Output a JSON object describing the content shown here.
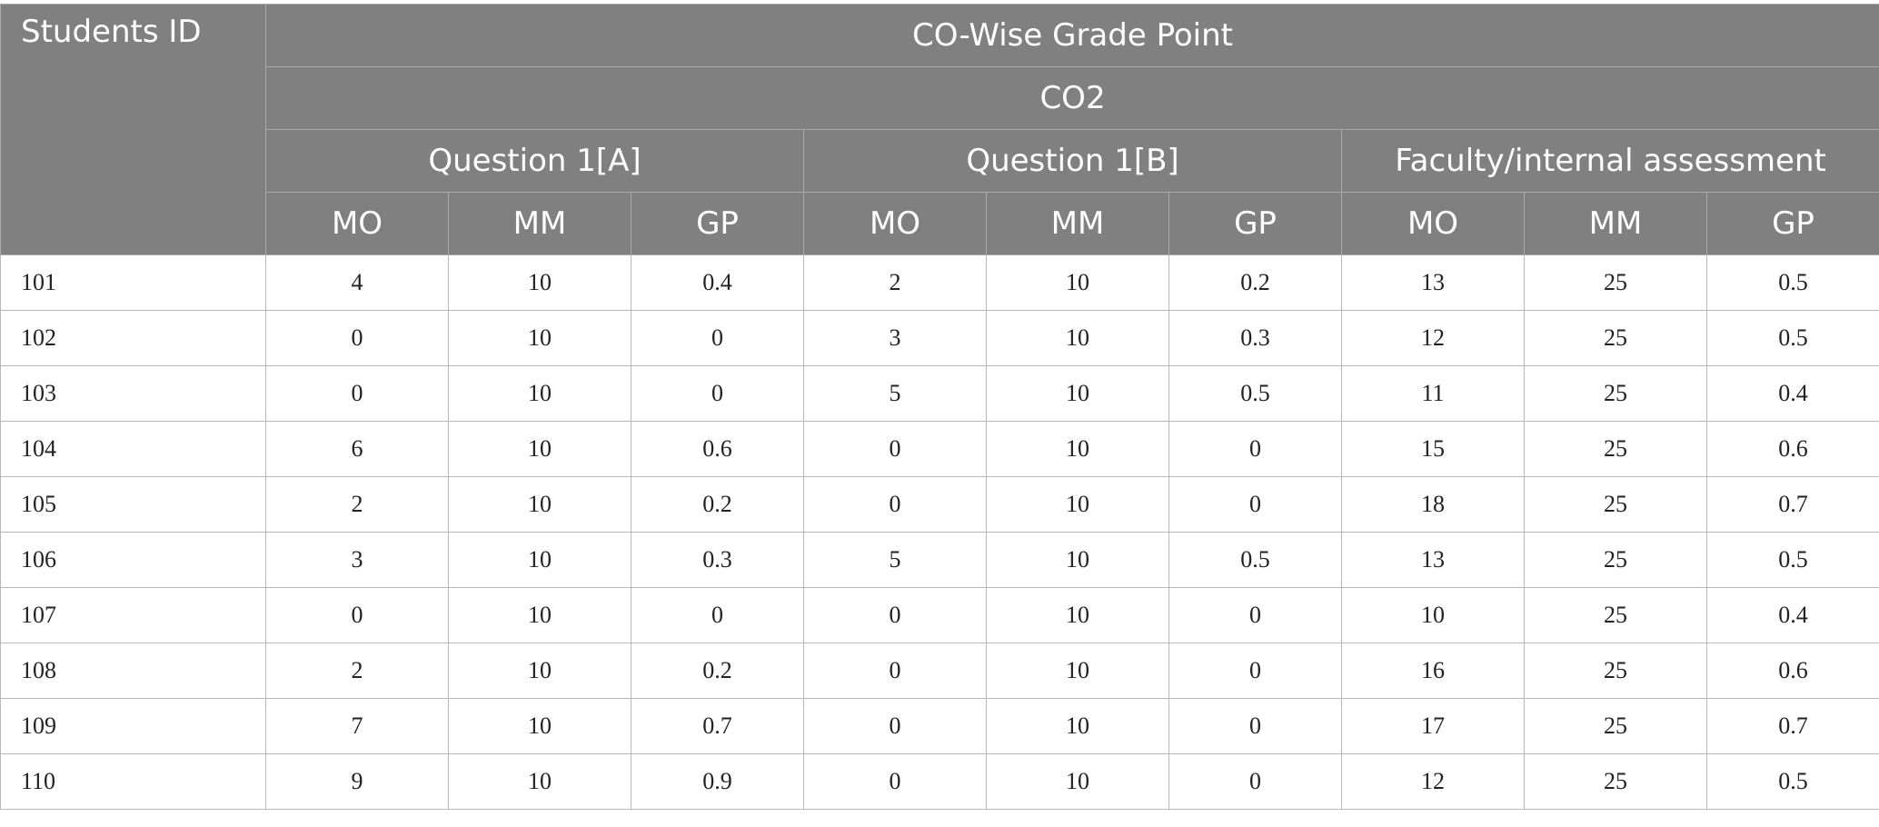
{
  "header": {
    "students_id": "Students ID",
    "title": "CO-Wise Grade Point",
    "co": "CO2",
    "groups": [
      "Question 1[A]",
      "Question 1[B]",
      "Faculty/internal assessment"
    ],
    "subcols": [
      "MO",
      "MM",
      "GP",
      "MO",
      "MM",
      "GP",
      "MO",
      "MM",
      "GP"
    ]
  },
  "rows": [
    {
      "id": "101",
      "values": [
        "4",
        "10",
        "0.4",
        "2",
        "10",
        "0.2",
        "13",
        "25",
        "0.5"
      ]
    },
    {
      "id": "102",
      "values": [
        "0",
        "10",
        "0",
        "3",
        "10",
        "0.3",
        "12",
        "25",
        "0.5"
      ]
    },
    {
      "id": "103",
      "values": [
        "0",
        "10",
        "0",
        "5",
        "10",
        "0.5",
        "11",
        "25",
        "0.4"
      ]
    },
    {
      "id": "104",
      "values": [
        "6",
        "10",
        "0.6",
        "0",
        "10",
        "0",
        "15",
        "25",
        "0.6"
      ]
    },
    {
      "id": "105",
      "values": [
        "2",
        "10",
        "0.2",
        "0",
        "10",
        "0",
        "18",
        "25",
        "0.7"
      ]
    },
    {
      "id": "106",
      "values": [
        "3",
        "10",
        "0.3",
        "5",
        "10",
        "0.5",
        "13",
        "25",
        "0.5"
      ]
    },
    {
      "id": "107",
      "values": [
        "0",
        "10",
        "0",
        "0",
        "10",
        "0",
        "10",
        "25",
        "0.4"
      ]
    },
    {
      "id": "108",
      "values": [
        "2",
        "10",
        "0.2",
        "0",
        "10",
        "0",
        "16",
        "25",
        "0.6"
      ]
    },
    {
      "id": "109",
      "values": [
        "7",
        "10",
        "0.7",
        "0",
        "10",
        "0",
        "17",
        "25",
        "0.7"
      ]
    },
    {
      "id": "110",
      "values": [
        "9",
        "10",
        "0.9",
        "0",
        "10",
        "0",
        "12",
        "25",
        "0.5"
      ]
    }
  ]
}
